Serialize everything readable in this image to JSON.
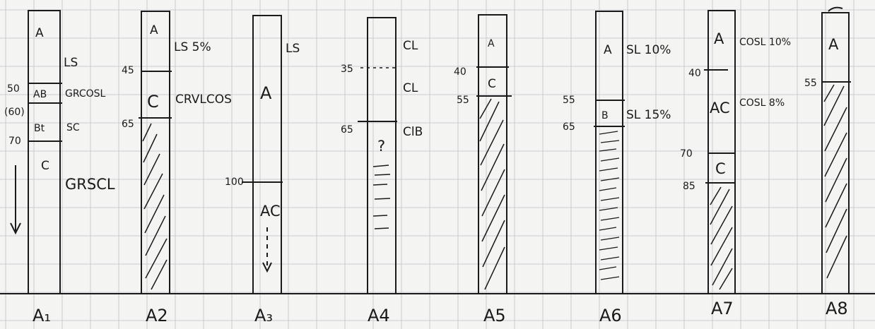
{
  "profiles": [
    {
      "id": "A1",
      "label": "A₁",
      "horizons": [
        {
          "name": "A",
          "from": 0,
          "to": 50,
          "texture": "LS"
        },
        {
          "name": "AB",
          "from": 50,
          "to": 60,
          "texture": "GRCOSL"
        },
        {
          "name": "Bt",
          "from": 60,
          "to": 70,
          "texture": "SC"
        },
        {
          "name": "C",
          "from": 70,
          "to": null,
          "texture": "GRSCL"
        }
      ],
      "depth_marks": [
        "50",
        "(60)",
        "70"
      ],
      "arrow": "continues-down"
    },
    {
      "id": "A2",
      "label": "A2",
      "horizons": [
        {
          "name": "A",
          "from": 0,
          "to": 45,
          "texture": "LS 5%"
        },
        {
          "name": "C",
          "from": 45,
          "to": 65,
          "texture": "CRVLCOS"
        },
        {
          "name": "",
          "from": 65,
          "to": null,
          "texture": "",
          "fill": "bedrock"
        }
      ],
      "depth_marks": [
        "45",
        "65"
      ]
    },
    {
      "id": "A3",
      "label": "A₃",
      "horizons": [
        {
          "name": "A",
          "from": 0,
          "to": 100,
          "texture": "LS"
        },
        {
          "name": "AC",
          "from": 100,
          "to": null,
          "texture": ""
        }
      ],
      "depth_marks": [
        "100"
      ],
      "arrow": "continues-down"
    },
    {
      "id": "A4",
      "label": "A4",
      "horizons": [
        {
          "name": "",
          "from": 0,
          "to": 35,
          "texture": "CL"
        },
        {
          "name": "",
          "from": 35,
          "to": 65,
          "texture": "CL"
        },
        {
          "name": "",
          "from": 65,
          "to": null,
          "texture": "ClB",
          "note": "?",
          "fill": "soft-bedrock"
        }
      ],
      "depth_marks": [
        "35",
        "65"
      ]
    },
    {
      "id": "A5",
      "label": "A5",
      "horizons": [
        {
          "name": "A",
          "from": 0,
          "to": 40,
          "texture": ""
        },
        {
          "name": "C",
          "from": 40,
          "to": 55,
          "texture": ""
        },
        {
          "name": "",
          "from": 55,
          "to": null,
          "texture": "",
          "fill": "bedrock"
        }
      ],
      "depth_marks": [
        "40",
        "55"
      ]
    },
    {
      "id": "A6",
      "label": "A6",
      "horizons": [
        {
          "name": "A",
          "from": 0,
          "to": 55,
          "texture": "SL 10%"
        },
        {
          "name": "B",
          "from": 55,
          "to": 65,
          "texture": "SL 15%"
        },
        {
          "name": "",
          "from": 65,
          "to": null,
          "texture": "",
          "fill": "soft-bedrock"
        }
      ],
      "depth_marks": [
        "55",
        "65"
      ]
    },
    {
      "id": "A7",
      "label": "A7",
      "horizons": [
        {
          "name": "A",
          "from": 0,
          "to": 40,
          "texture": "COSL 10%"
        },
        {
          "name": "AC",
          "from": 40,
          "to": 70,
          "texture": "COSL 8%"
        },
        {
          "name": "C",
          "from": 70,
          "to": 85,
          "texture": ""
        },
        {
          "name": "",
          "from": 85,
          "to": null,
          "texture": "",
          "fill": "bedrock"
        }
      ],
      "depth_marks": [
        "40",
        "70",
        "85"
      ]
    },
    {
      "id": "A8",
      "label": "A8",
      "horizons": [
        {
          "name": "A",
          "from": 0,
          "to": 55,
          "texture": ""
        },
        {
          "name": "",
          "from": 55,
          "to": null,
          "texture": "",
          "fill": "bedrock"
        }
      ],
      "depth_marks": [
        "55"
      ]
    }
  ],
  "colors": {
    "paper": "#f4f4f2",
    "grid": "#c9cbd0",
    "ink": "#1a1a1a"
  }
}
